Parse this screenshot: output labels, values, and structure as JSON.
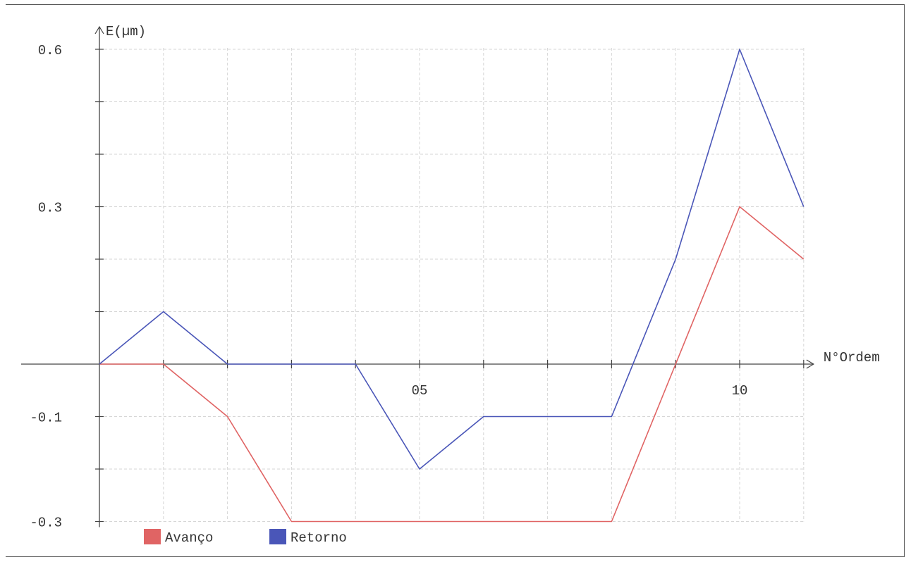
{
  "chart_data": {
    "type": "line",
    "title": "",
    "xlabel": "N°Ordem",
    "ylabel": "E(µm)",
    "x": [
      0,
      1,
      2,
      3,
      4,
      5,
      6,
      7,
      8,
      9,
      10,
      11
    ],
    "xlim": [
      0,
      11
    ],
    "ylim": [
      -0.3,
      0.6
    ],
    "x_tick_labels": [
      {
        "x": 5,
        "label": "05"
      },
      {
        "x": 10,
        "label": "10"
      }
    ],
    "y_tick_labels": [
      {
        "y": 0.6,
        "label": "0.6"
      },
      {
        "y": 0.3,
        "label": "0.3"
      },
      {
        "y": -0.1,
        "label": "-0.1"
      },
      {
        "y": -0.3,
        "label": "-0.3"
      }
    ],
    "grid": true,
    "legend_position": "bottom-left",
    "series": [
      {
        "name": "Avanço",
        "color": "#e06464",
        "values": [
          0,
          0,
          -0.1,
          -0.3,
          -0.3,
          -0.3,
          -0.3,
          -0.3,
          -0.3,
          0,
          0.3,
          0.2
        ]
      },
      {
        "name": "Retorno",
        "color": "#4a56b8",
        "values": [
          0,
          0.1,
          0,
          0,
          0,
          -0.2,
          -0.1,
          -0.1,
          -0.1,
          0.2,
          0.6,
          0.3
        ]
      }
    ]
  }
}
